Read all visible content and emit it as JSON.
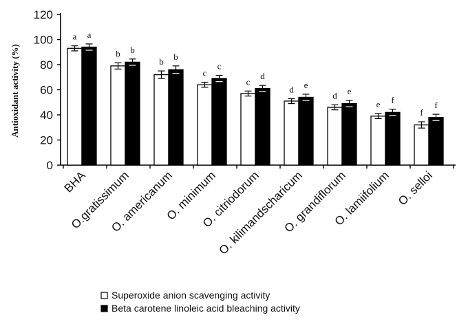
{
  "chart_data": {
    "type": "bar",
    "ylabel": "Antioxidant activity (%)",
    "xlabel": "",
    "ylim": [
      0,
      120
    ],
    "yticks": [
      0,
      20,
      40,
      60,
      80,
      100,
      120
    ],
    "grid": false,
    "legend_position": "bottom",
    "categories": [
      "BHA",
      "O.gratissimum",
      "O. americanum",
      "O. minimum",
      "O. citriodorum",
      "O. kilimandscharicum",
      "O. grandiflorum",
      "O. lamiifolium",
      "O. selloi"
    ],
    "series": [
      {
        "name": "Superoxide anion scavenging activity",
        "color": "#ffffff",
        "values": [
          93,
          79,
          72,
          64,
          57,
          51,
          46,
          39,
          32
        ],
        "errors": [
          2,
          2.5,
          3,
          2,
          2,
          2,
          2,
          2,
          2.5
        ],
        "significance": [
          "a",
          "b",
          "b",
          "c",
          "c",
          "d",
          "d",
          "e",
          "f"
        ]
      },
      {
        "name": "Beta carotene linoleic acid bleaching activity",
        "color": "#000000",
        "values": [
          94,
          82,
          76,
          69,
          61,
          54,
          49,
          42,
          38
        ],
        "errors": [
          2.5,
          2.5,
          3,
          2.5,
          2.5,
          2.5,
          2.5,
          2.5,
          2.5
        ],
        "significance": [
          "a",
          "b",
          "b",
          "c",
          "d",
          "e",
          "e",
          "f",
          "f"
        ]
      }
    ]
  }
}
